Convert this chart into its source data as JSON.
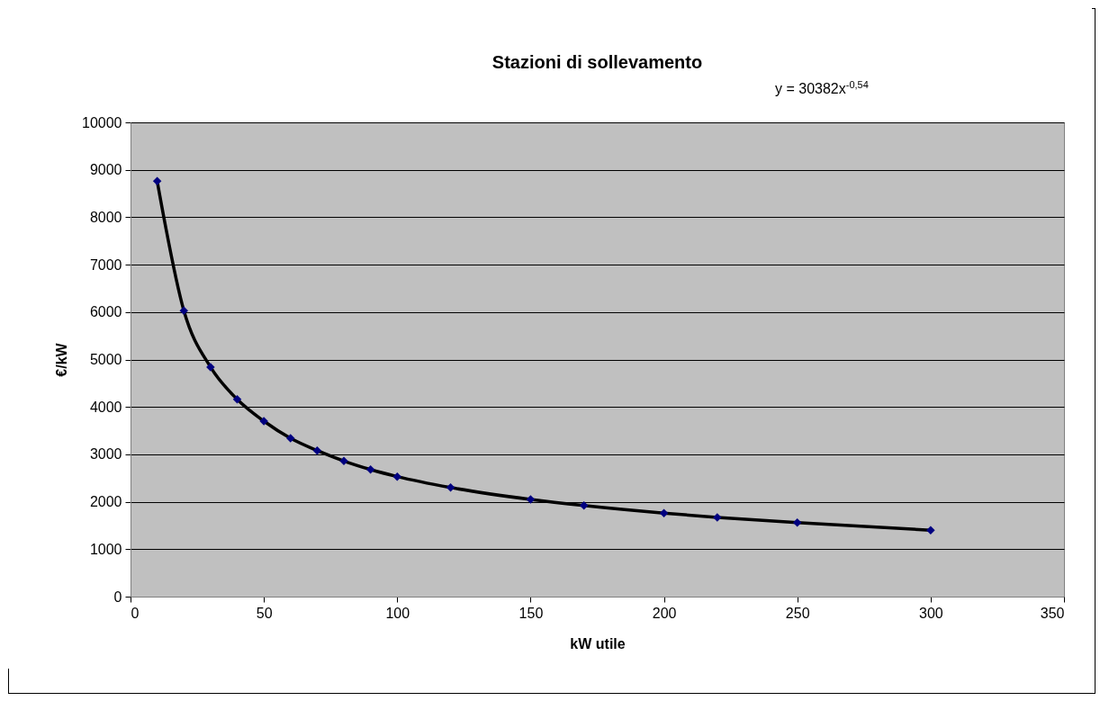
{
  "chart_data": {
    "type": "scatter",
    "title": "Stazioni di sollevamento",
    "xlabel": "kW utile",
    "ylabel": "€/kW",
    "annotations": [
      "y = 30382x$^{-0,54}$"
    ],
    "x": [
      10,
      20,
      30,
      40,
      50,
      60,
      70,
      80,
      90,
      100,
      120,
      150,
      170,
      200,
      220,
      250,
      300
    ],
    "series": [
      {
        "color": "#000080",
        "marker": "diamond",
        "values": [
          8760,
          6030,
          4840,
          4160,
          3700,
          3340,
          3080,
          2860,
          2680,
          2530,
          2300,
          2050,
          1920,
          1760,
          1670,
          1560,
          1400
        ]
      },
      {
        "type": "line",
        "color": "#000000",
        "line_style": "solid",
        "values": [
          8760,
          6030,
          4840,
          4160,
          3700,
          3340,
          3080,
          2860,
          2680,
          2530,
          2300,
          2050,
          1920,
          1760,
          1670,
          1560,
          1400
        ]
      }
    ],
    "xlim": [
      0,
      350
    ],
    "xticks": [
      0,
      50,
      100,
      150,
      200,
      250,
      300,
      350
    ],
    "ylim": [
      0,
      10000
    ],
    "yticks": [
      0,
      1000,
      2000,
      3000,
      4000,
      5000,
      6000,
      7000,
      8000,
      9000,
      10000
    ],
    "grid": "y"
  }
}
